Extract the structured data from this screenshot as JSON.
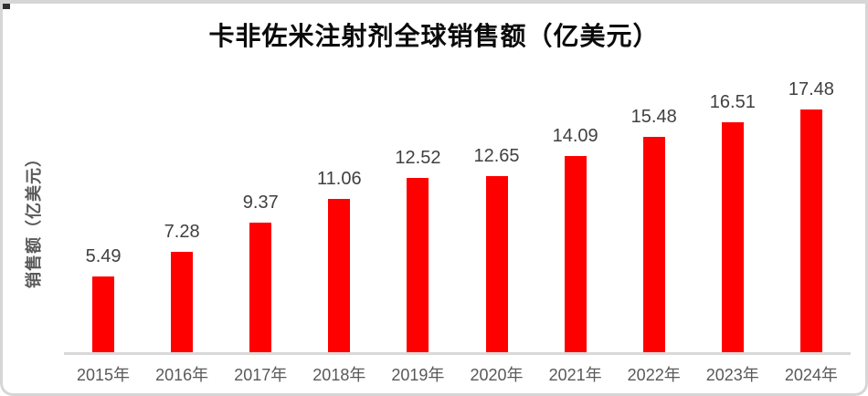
{
  "chart": {
    "title": "卡非佐米注射剂全球销售额（亿美元）",
    "ylabel": "销售额（亿美元）"
  },
  "chart_data": {
    "type": "bar",
    "title": "卡非佐米注射剂全球销售额（亿美元）",
    "xlabel": "",
    "ylabel": "销售额（亿美元）",
    "categories": [
      "2015年",
      "2016年",
      "2017年",
      "2018年",
      "2019年",
      "2020年",
      "2021年",
      "2022年",
      "2023年",
      "2024年"
    ],
    "values": [
      5.49,
      7.28,
      9.37,
      11.06,
      12.52,
      12.65,
      14.09,
      15.48,
      16.51,
      17.48
    ],
    "ylim": [
      0,
      19.8
    ],
    "grid": false,
    "legend": false,
    "data_labels": true,
    "colors": {
      "bar": "#ff0000",
      "data_label": "#404040",
      "axis_label": "#595959",
      "axis_line": "#d9d9d9",
      "title": "#0a0a0a",
      "border": "#d6d6d6"
    }
  }
}
